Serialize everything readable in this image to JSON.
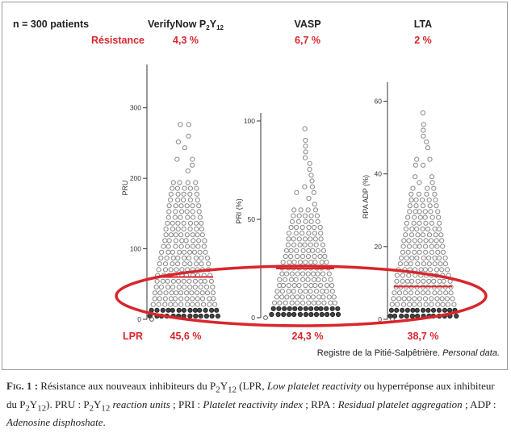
{
  "colors": {
    "accent": "#d8262c",
    "marker": "#888888",
    "axis": "#333333"
  },
  "header": {
    "n_label": "n = 300 patients",
    "resistance_label": "Résistance",
    "lpr_label": "LPR"
  },
  "chart_data": [
    {
      "type": "scatter",
      "title": "VerifyNow P2Y12",
      "ylabel": "PRU",
      "ylim": [
        0,
        350
      ],
      "yticks": [
        0,
        100,
        200,
        300
      ],
      "threshold": 60,
      "resistance": "4,3 %",
      "lpr": "45,6 %"
    },
    {
      "type": "scatter",
      "title": "VASP",
      "ylabel": "PRI (%)",
      "ylim": [
        0,
        100
      ],
      "yticks": [
        0,
        50,
        100
      ],
      "threshold": 25,
      "resistance": "6,7 %",
      "lpr": "24,3 %"
    },
    {
      "type": "scatter",
      "title": "LTA",
      "ylabel": "RPA ADP (%)",
      "ylim": [
        0,
        63
      ],
      "yticks": [
        0,
        20,
        40,
        60
      ],
      "threshold": 9,
      "resistance": "2 %",
      "lpr": "38,7 %"
    }
  ],
  "credit": {
    "text": "Registre de la Pitié-Salpêtrière. ",
    "italic": "Personal data."
  },
  "caption": {
    "fig_label": "Fig. 1 :",
    "p1": " Résistance aux nouveaux inhibiteurs du P",
    "sub2": "2",
    "y": "Y",
    "sub12": "12",
    "p2": " (LPR, ",
    "p3": "Low platelet reactivity",
    "p4": " ou hyperréponse aux inhibiteur du P",
    "p5": "). PRU : P",
    "p6": "reaction units",
    "p7": " ; PRI : ",
    "p8": "Platelet reactivity index",
    "p9": " ; RPA : ",
    "p10": "Residual platelet aggregation",
    "p11": " ; ADP : ",
    "p12": "Adenosine disphoshate",
    "p13": "."
  }
}
